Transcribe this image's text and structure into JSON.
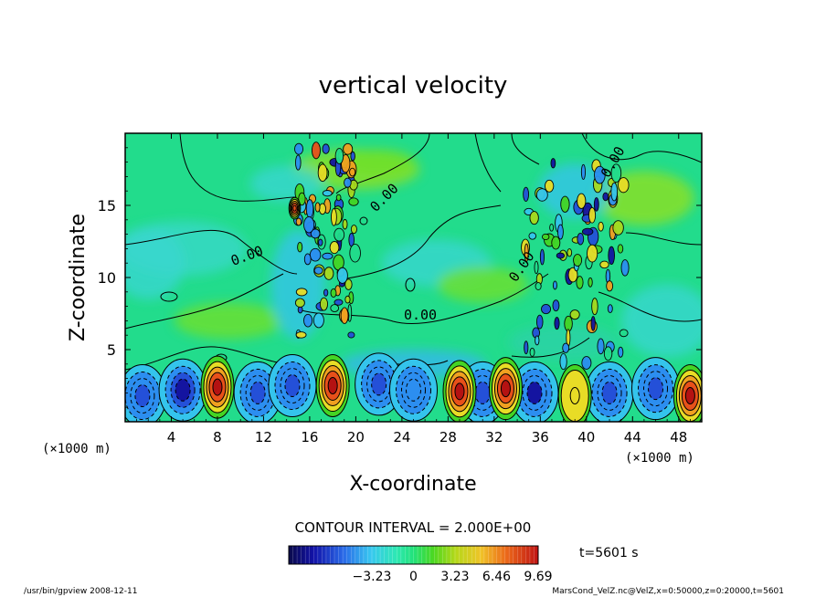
{
  "chart_data": {
    "type": "heatmap",
    "title": "vertical velocity",
    "xlabel": "X-coordinate",
    "ylabel": "Z-coordinate",
    "x_unit_left": "(×1000 m)",
    "x_unit_right": "(×1000 m)",
    "xlim": [
      0,
      50
    ],
    "ylim": [
      0,
      20
    ],
    "x_ticks": [
      "4",
      "8",
      "12",
      "16",
      "20",
      "24",
      "28",
      "32",
      "36",
      "40",
      "44",
      "48"
    ],
    "y_ticks": [
      "5",
      "10",
      "15"
    ],
    "contour_interval_text": "CONTOUR INTERVAL = 2.000E+00",
    "contour_labels": [
      "0.00",
      "0.00",
      "0.00",
      "0.00",
      "0.00"
    ],
    "colorbar": {
      "range": [
        -9.69,
        9.69
      ],
      "tick_labels": [
        "−3.23",
        "0",
        "3.23",
        "6.46",
        "9.69"
      ],
      "tick_values": [
        -3.23,
        0,
        3.23,
        6.46,
        9.69
      ]
    },
    "time_text": "t=5601 s",
    "updraft_centers_km": [
      {
        "x": 8,
        "z": 2.4,
        "w": 9.0
      },
      {
        "x": 18,
        "z": 2.5,
        "w": 9.5
      },
      {
        "x": 29,
        "z": 2.1,
        "w": 8.0
      },
      {
        "x": 33,
        "z": 2.3,
        "w": 8.5
      },
      {
        "x": 39,
        "z": 1.8,
        "w": 4.0
      },
      {
        "x": 49,
        "z": 1.8,
        "w": 9.0
      },
      {
        "x": 14.7,
        "z": 14.8,
        "w": 7.0
      }
    ],
    "downdraft_centers_km": [
      {
        "x": 1.5,
        "z": 1.8,
        "w": -6.5
      },
      {
        "x": 5,
        "z": 2.2,
        "w": -7.5
      },
      {
        "x": 11.5,
        "z": 2.0,
        "w": -5.0
      },
      {
        "x": 14.5,
        "z": 2.5,
        "w": -6.0
      },
      {
        "x": 22,
        "z": 2.6,
        "w": -6.0
      },
      {
        "x": 25,
        "z": 2.2,
        "w": -4.5
      },
      {
        "x": 31,
        "z": 2.0,
        "w": -6.0
      },
      {
        "x": 35.5,
        "z": 2.0,
        "w": -7.0
      },
      {
        "x": 42,
        "z": 2.0,
        "w": -6.5
      },
      {
        "x": 46,
        "z": 2.3,
        "w": -5.5
      }
    ],
    "turbulent_regions_km": [
      {
        "x": 17.5,
        "z": 12.5
      },
      {
        "x": 39,
        "z": 11
      }
    ]
  },
  "footer": {
    "left": "/usr/bin/gpview   2008-12-11",
    "right": "MarsCond_VelZ.nc@VelZ,x=0:50000,z=0:20000,t=5601"
  }
}
